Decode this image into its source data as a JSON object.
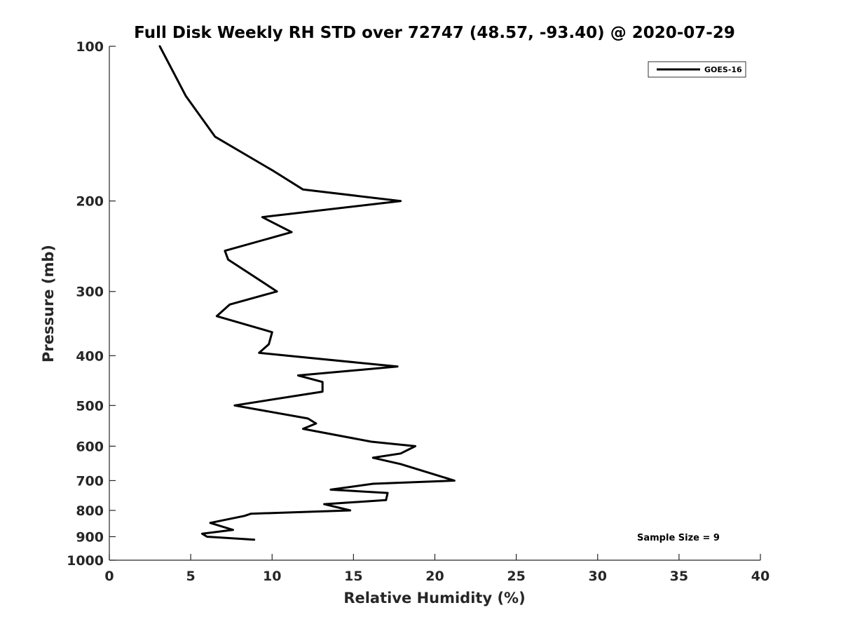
{
  "chart_data": {
    "type": "line",
    "title": "Full Disk Weekly RH STD over 72747 (48.57, -93.40) @ 2020-07-29",
    "xlabel": "Relative Humidity (%)",
    "ylabel": "Pressure (mb)",
    "xlim": [
      0,
      40
    ],
    "ylim": [
      100,
      1000
    ],
    "y_scale": "log",
    "y_reversed": true,
    "x_ticks": [
      0,
      5,
      10,
      15,
      20,
      25,
      30,
      35,
      40
    ],
    "y_ticks": [
      100,
      200,
      300,
      400,
      500,
      600,
      700,
      800,
      900,
      1000
    ],
    "grid": false,
    "legend_position": "top-right",
    "annotation": "Sample Size = 9",
    "series": [
      {
        "name": "GOES-16",
        "color": "#000000",
        "points": [
          [
            3.1,
            100
          ],
          [
            4.7,
            125
          ],
          [
            6.5,
            150
          ],
          [
            10.1,
            175
          ],
          [
            11.9,
            190
          ],
          [
            17.9,
            200
          ],
          [
            9.4,
            215
          ],
          [
            11.2,
            230
          ],
          [
            7.1,
            250
          ],
          [
            7.3,
            260
          ],
          [
            10.3,
            300
          ],
          [
            7.4,
            318
          ],
          [
            6.6,
            335
          ],
          [
            10.0,
            360
          ],
          [
            9.8,
            380
          ],
          [
            9.2,
            395
          ],
          [
            17.7,
            420
          ],
          [
            11.6,
            437
          ],
          [
            13.1,
            450
          ],
          [
            13.1,
            470
          ],
          [
            7.7,
            500
          ],
          [
            12.2,
            530
          ],
          [
            12.7,
            542
          ],
          [
            11.9,
            555
          ],
          [
            16.1,
            588
          ],
          [
            18.8,
            600
          ],
          [
            17.9,
            620
          ],
          [
            16.2,
            632
          ],
          [
            17.9,
            650
          ],
          [
            21.2,
            700
          ],
          [
            16.2,
            710
          ],
          [
            13.6,
            729
          ],
          [
            17.1,
            740
          ],
          [
            17.0,
            764
          ],
          [
            13.2,
            778
          ],
          [
            14.8,
            800
          ],
          [
            8.7,
            812
          ],
          [
            8.3,
            820
          ],
          [
            6.2,
            846
          ],
          [
            7.6,
            873
          ],
          [
            5.7,
            888
          ],
          [
            6.0,
            900
          ],
          [
            8.9,
            912
          ]
        ]
      }
    ]
  }
}
